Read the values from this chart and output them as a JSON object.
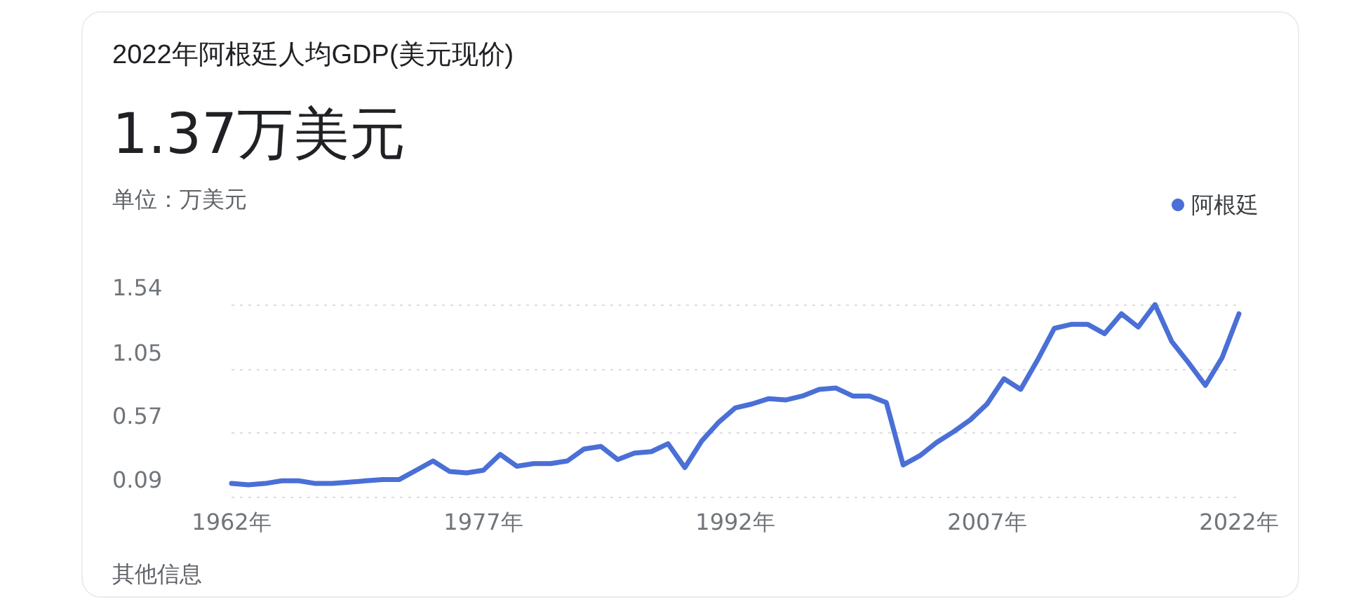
{
  "chart_data": {
    "type": "line",
    "title": "2022年阿根廷人均GDP(美元现价)",
    "subtitle": "1.37万美元",
    "ylabel": "单位：万美元",
    "annotations": [
      "其他信息"
    ],
    "x": [
      1962,
      1963,
      1964,
      1965,
      1966,
      1967,
      1968,
      1969,
      1970,
      1971,
      1972,
      1973,
      1974,
      1975,
      1976,
      1977,
      1978,
      1979,
      1980,
      1981,
      1982,
      1983,
      1984,
      1985,
      1986,
      1987,
      1988,
      1989,
      1990,
      1991,
      1992,
      1993,
      1994,
      1995,
      1996,
      1997,
      1998,
      1999,
      2000,
      2001,
      2002,
      2003,
      2004,
      2005,
      2006,
      2007,
      2008,
      2009,
      2010,
      2011,
      2012,
      2013,
      2014,
      2015,
      2016,
      2017,
      2018,
      2019,
      2020,
      2021,
      2022
    ],
    "series": [
      {
        "name": "阿根廷",
        "color": "#4a6fd6",
        "values": [
          0.19,
          0.18,
          0.19,
          0.21,
          0.21,
          0.19,
          0.19,
          0.2,
          0.21,
          0.22,
          0.22,
          0.29,
          0.36,
          0.28,
          0.27,
          0.29,
          0.41,
          0.32,
          0.34,
          0.34,
          0.36,
          0.45,
          0.47,
          0.37,
          0.42,
          0.43,
          0.49,
          0.31,
          0.51,
          0.65,
          0.76,
          0.79,
          0.83,
          0.82,
          0.85,
          0.9,
          0.91,
          0.85,
          0.85,
          0.8,
          0.33,
          0.4,
          0.5,
          0.58,
          0.67,
          0.79,
          0.98,
          0.9,
          1.12,
          1.36,
          1.39,
          1.39,
          1.32,
          1.47,
          1.37,
          1.54,
          1.26,
          1.1,
          0.93,
          1.14,
          1.47
        ]
      }
    ],
    "xlim": [
      1962,
      2022
    ],
    "xticks": [
      {
        "value": 1962,
        "label": "1962年"
      },
      {
        "value": 1977,
        "label": "1977年"
      },
      {
        "value": 1992,
        "label": "1992年"
      },
      {
        "value": 2007,
        "label": "2007年"
      },
      {
        "value": 2022,
        "label": "2022年"
      }
    ],
    "ylim": [
      0.09,
      1.54
    ],
    "yticks": [
      0.09,
      0.57,
      1.05,
      1.54
    ],
    "grid": "y",
    "legend": "top right",
    "marker": "none",
    "line_style": "solid"
  }
}
